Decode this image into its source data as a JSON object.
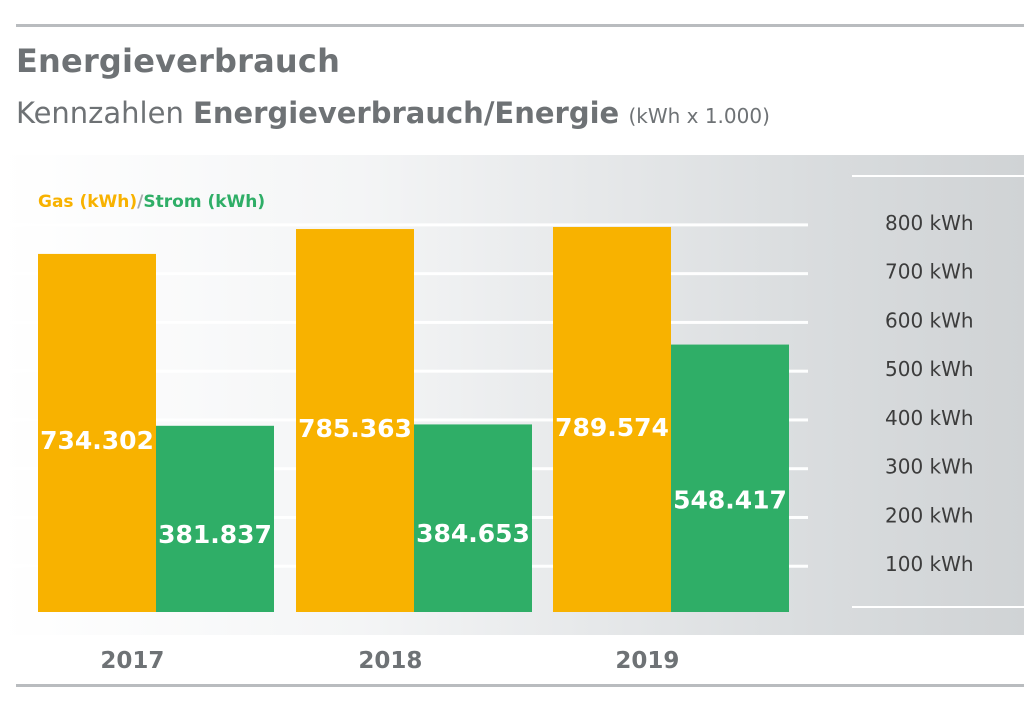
{
  "title": "Energieverbrauch",
  "subtitle": {
    "prefix": "Kennzahlen ",
    "bold": "Energieverbrauch",
    "separator": "/",
    "bold2": "Energie",
    "unit": "(kWh x 1.000)"
  },
  "legend": {
    "gas": "Gas (kWh)",
    "separator": "/",
    "strom": "Strom (kWh)"
  },
  "colors": {
    "gas": "#f8b200",
    "strom": "#2fae67"
  },
  "chart_data": {
    "type": "bar",
    "categories": [
      "2017",
      "2018",
      "2019"
    ],
    "series": [
      {
        "name": "Gas (kWh)",
        "values": [
          734.302,
          785.363,
          789.574
        ],
        "labels": [
          "734.302",
          "785.363",
          "789.574"
        ]
      },
      {
        "name": "Strom (kWh)",
        "values": [
          381.837,
          384.653,
          548.417
        ],
        "labels": [
          "381.837",
          "384.653",
          "548.417"
        ]
      }
    ],
    "y_ticks": [
      {
        "value": 800,
        "label": "800 kWh"
      },
      {
        "value": 700,
        "label": "700 kWh"
      },
      {
        "value": 600,
        "label": "600 kWh"
      },
      {
        "value": 500,
        "label": "500 kWh"
      },
      {
        "value": 400,
        "label": "400 kWh"
      },
      {
        "value": 300,
        "label": "300 kWh"
      },
      {
        "value": 200,
        "label": "200 kWh"
      },
      {
        "value": 100,
        "label": "100 kWh"
      }
    ],
    "ylim": [
      0,
      890
    ],
    "grid": true,
    "axis_position": "right",
    "legend_position": "top-left"
  }
}
